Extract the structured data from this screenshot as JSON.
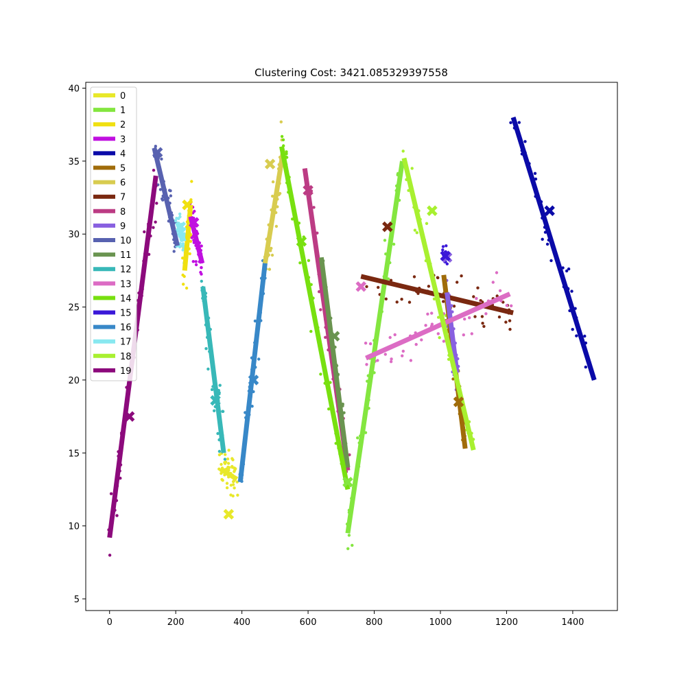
{
  "chart_data": {
    "type": "scatter",
    "title": "Clustering Cost: 3421.085329397558",
    "xlabel": "",
    "ylabel": "",
    "xlim": [
      -72,
      1535
    ],
    "ylim": [
      4.2,
      40.4
    ],
    "xticks": [
      0,
      200,
      400,
      600,
      800,
      1000,
      1200,
      1400
    ],
    "yticks": [
      5,
      10,
      15,
      20,
      25,
      30,
      35,
      40
    ],
    "legend_position": "upper-left",
    "clusters": [
      {
        "name": "0",
        "color": "#e8e82a",
        "line": [
          [
            335,
            13.9
          ],
          [
            385,
            13.2
          ]
        ],
        "centroids": [
          [
            360,
            10.8
          ]
        ]
      },
      {
        "name": "1",
        "color": "#84e640",
        "line": [
          [
            720,
            9.5
          ],
          [
            885,
            35.0
          ]
        ],
        "centroids": [
          [
            720,
            13.0
          ]
        ]
      },
      {
        "name": "2",
        "color": "#f0e010",
        "line": [
          [
            227,
            27.5
          ],
          [
            245,
            32.0
          ]
        ],
        "centroids": [
          [
            235,
            32.0
          ]
        ]
      },
      {
        "name": "3",
        "color": "#c010e0",
        "line": [
          [
            245,
            31.2
          ],
          [
            280,
            28.0
          ]
        ],
        "centroids": [
          [
            255,
            30.8
          ]
        ]
      },
      {
        "name": "4",
        "color": "#0a0aa8",
        "line": [
          [
            1220,
            38.0
          ],
          [
            1465,
            20.0
          ]
        ],
        "centroids": [
          [
            1330,
            31.6
          ]
        ]
      },
      {
        "name": "5",
        "color": "#a06c0a",
        "line": [
          [
            1010,
            27.2
          ],
          [
            1075,
            15.3
          ]
        ],
        "centroids": [
          [
            1055,
            18.5
          ]
        ]
      },
      {
        "name": "6",
        "color": "#d8cc50",
        "line": [
          [
            470,
            28.0
          ],
          [
            525,
            35.7
          ]
        ],
        "centroids": [
          [
            485,
            34.8
          ]
        ]
      },
      {
        "name": "7",
        "color": "#7a2810",
        "line": [
          [
            760,
            27.1
          ],
          [
            1220,
            24.6
          ]
        ],
        "centroids": [
          [
            840,
            30.5
          ]
        ]
      },
      {
        "name": "8",
        "color": "#bc3c84",
        "line": [
          [
            590,
            34.5
          ],
          [
            720,
            13.8
          ]
        ],
        "centroids": [
          [
            600,
            33.0
          ]
        ]
      },
      {
        "name": "9",
        "color": "#8860e0",
        "line": [
          [
            1020,
            26.0
          ],
          [
            1050,
            20.5
          ]
        ],
        "centroids": [
          [
            1020,
            28.4
          ]
        ]
      },
      {
        "name": "10",
        "color": "#5862b0",
        "line": [
          [
            135,
            35.9
          ],
          [
            205,
            29.2
          ]
        ],
        "centroids": [
          [
            145,
            35.6
          ]
        ]
      },
      {
        "name": "11",
        "color": "#6a9450",
        "line": [
          [
            640,
            28.4
          ],
          [
            720,
            14.0
          ]
        ],
        "centroids": [
          [
            680,
            23.0
          ]
        ]
      },
      {
        "name": "12",
        "color": "#38b8b8",
        "line": [
          [
            282,
            26.4
          ],
          [
            345,
            15.0
          ]
        ],
        "centroids": [
          [
            320,
            18.6
          ]
        ]
      },
      {
        "name": "13",
        "color": "#dc6cc4",
        "line": [
          [
            775,
            21.5
          ],
          [
            1210,
            25.9
          ]
        ],
        "centroids": [
          [
            760,
            26.4
          ]
        ]
      },
      {
        "name": "14",
        "color": "#78e010",
        "line": [
          [
            520,
            36.0
          ],
          [
            720,
            12.5
          ]
        ],
        "centroids": [
          [
            580,
            29.5
          ]
        ]
      },
      {
        "name": "15",
        "color": "#3a18d8",
        "line": [],
        "centroids": [
          [
            1015,
            28.5
          ]
        ]
      },
      {
        "name": "16",
        "color": "#3888c8",
        "line": [
          [
            395,
            13.0
          ],
          [
            470,
            28.0
          ]
        ],
        "centroids": [
          [
            435,
            20.0
          ]
        ]
      },
      {
        "name": "17",
        "color": "#88e8f0",
        "line": [
          [
            205,
            30.8
          ],
          [
            225,
            29.5
          ]
        ],
        "centroids": [
          [
            215,
            30.5
          ]
        ]
      },
      {
        "name": "18",
        "color": "#a8f030",
        "line": [
          [
            890,
            35.2
          ],
          [
            1100,
            15.2
          ]
        ],
        "centroids": [
          [
            975,
            31.6
          ]
        ]
      },
      {
        "name": "19",
        "color": "#8c0a7c",
        "line": [
          [
            0,
            9.2
          ],
          [
            140,
            34.0
          ]
        ],
        "centroids": [
          [
            60,
            17.5
          ]
        ]
      }
    ]
  }
}
